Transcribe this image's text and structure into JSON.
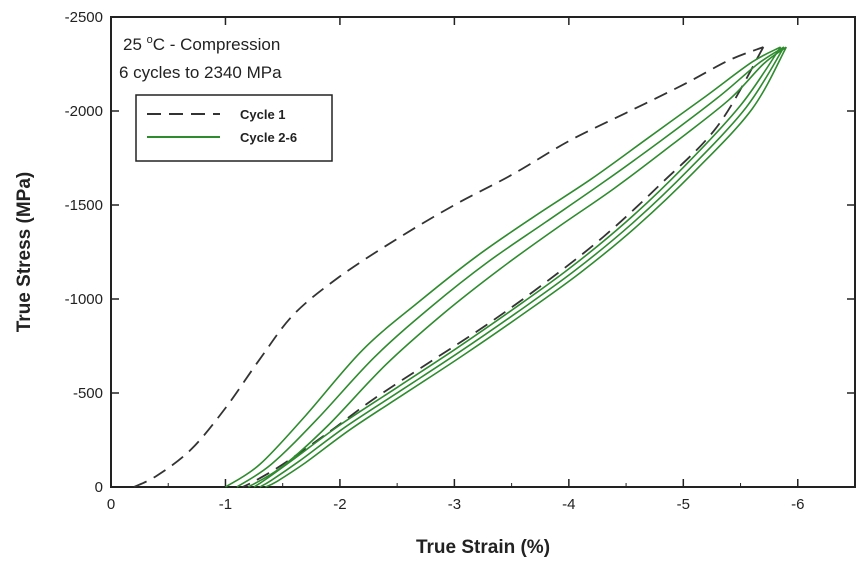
{
  "chart_data": {
    "type": "line",
    "xlabel": "True Strain (%)",
    "ylabel": "True Stress (MPa)",
    "xlim": [
      0,
      -6.5
    ],
    "ylim": [
      0,
      -2500
    ],
    "x_ticks": [
      0,
      -1,
      -2,
      -3,
      -4,
      -5,
      -6
    ],
    "y_ticks": [
      0,
      -500,
      -1000,
      -1500,
      -2000,
      -2500
    ],
    "annotation": {
      "line1_pre": "25 ",
      "line1_sup": "o",
      "line1_post": "C - Compression",
      "line2": "6 cycles to 2340 MPa"
    },
    "legend_position": "top-left",
    "series": [
      {
        "name": "Cycle 1",
        "style": "dashed",
        "color": "#333333",
        "x": [
          -0.2,
          -0.4,
          -0.7,
          -1.0,
          -1.3,
          -1.6,
          -2.0,
          -2.5,
          -3.0,
          -3.5,
          -4.0,
          -4.5,
          -5.0,
          -5.4,
          -5.7
        ],
        "y": [
          0,
          -60,
          -200,
          -420,
          -680,
          -920,
          -1120,
          -1320,
          -1500,
          -1660,
          -1840,
          -1990,
          -2140,
          -2270,
          -2340
        ]
      },
      {
        "name": "",
        "style": "dashed",
        "color": "#333333",
        "x": [
          -5.7,
          -5.3,
          -4.8,
          -4.3,
          -3.8,
          -3.3,
          -2.8,
          -2.3,
          -1.9,
          -1.5,
          -1.25,
          -1.15
        ],
        "y": [
          -2340,
          -1920,
          -1610,
          -1330,
          -1090,
          -870,
          -670,
          -470,
          -290,
          -120,
          -30,
          0
        ]
      },
      {
        "name": "Cycle 2-6",
        "style": "solid",
        "color": "#2e8b2e",
        "x": [
          -1.0,
          -1.3,
          -1.7,
          -2.2,
          -2.7,
          -3.2,
          -3.7,
          -4.2,
          -4.7,
          -5.2,
          -5.6,
          -5.85
        ],
        "y": [
          0,
          -120,
          -380,
          -730,
          -990,
          -1230,
          -1440,
          -1640,
          -1860,
          -2080,
          -2260,
          -2340
        ]
      },
      {
        "name": "",
        "style": "solid",
        "color": "#2e8b2e",
        "x": [
          -5.85,
          -5.5,
          -5.0,
          -4.5,
          -4.0,
          -3.5,
          -3.0,
          -2.5,
          -2.0,
          -1.6,
          -1.35,
          -1.25
        ],
        "y": [
          -2340,
          -2030,
          -1700,
          -1410,
          -1160,
          -940,
          -730,
          -530,
          -330,
          -150,
          -40,
          0
        ]
      },
      {
        "name": "",
        "style": "solid",
        "color": "#2e8b2e",
        "x": [
          -1.1,
          -1.4,
          -1.8,
          -2.3,
          -2.8,
          -3.3,
          -3.8,
          -4.3,
          -4.8,
          -5.3,
          -5.65,
          -5.88
        ],
        "y": [
          0,
          -120,
          -360,
          -690,
          -960,
          -1200,
          -1410,
          -1620,
          -1840,
          -2070,
          -2250,
          -2340
        ]
      },
      {
        "name": "",
        "style": "solid",
        "color": "#2e8b2e",
        "x": [
          -5.88,
          -5.55,
          -5.05,
          -4.55,
          -4.05,
          -3.55,
          -3.05,
          -2.55,
          -2.05,
          -1.65,
          -1.4,
          -1.3
        ],
        "y": [
          -2340,
          -2020,
          -1690,
          -1400,
          -1150,
          -930,
          -720,
          -520,
          -320,
          -140,
          -35,
          0
        ]
      },
      {
        "name": "",
        "style": "solid",
        "color": "#2e8b2e",
        "x": [
          -1.2,
          -1.5,
          -1.9,
          -2.4,
          -2.9,
          -3.4,
          -3.9,
          -4.4,
          -4.9,
          -5.4,
          -5.7,
          -5.9
        ],
        "y": [
          0,
          -110,
          -330,
          -650,
          -920,
          -1160,
          -1380,
          -1590,
          -1820,
          -2060,
          -2250,
          -2340
        ]
      },
      {
        "name": "",
        "style": "solid",
        "color": "#2e8b2e",
        "x": [
          -5.9,
          -5.6,
          -5.1,
          -4.6,
          -4.1,
          -3.6,
          -3.1,
          -2.6,
          -2.1,
          -1.7,
          -1.45,
          -1.35
        ],
        "y": [
          -2340,
          -2010,
          -1680,
          -1390,
          -1140,
          -920,
          -710,
          -510,
          -310,
          -130,
          -30,
          0
        ]
      }
    ]
  }
}
